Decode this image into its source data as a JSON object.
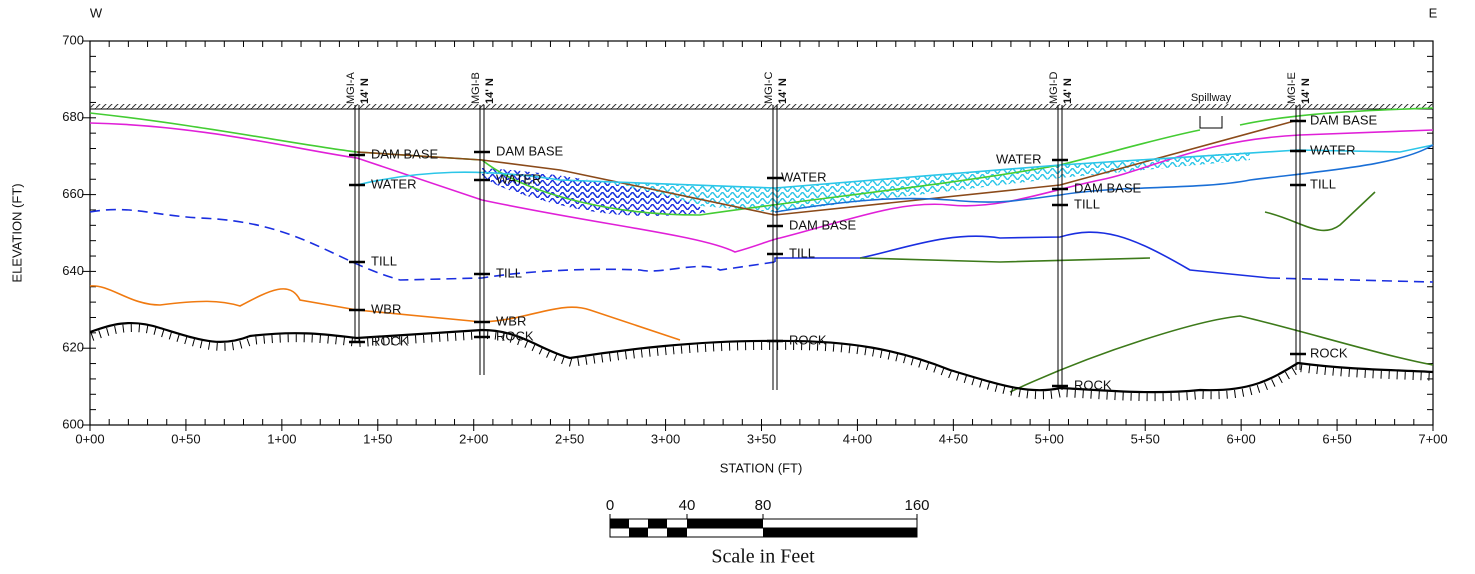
{
  "corners": {
    "west": "W",
    "east": "E"
  },
  "y_axis": {
    "title": "ELEVATION (FT)",
    "ticks": [
      "700",
      "680",
      "660",
      "640",
      "620",
      "600"
    ]
  },
  "x_axis": {
    "title": "STATION (FT)",
    "ticks": [
      "0+00",
      "0+50",
      "1+00",
      "1+50",
      "2+00",
      "2+50",
      "3+00",
      "3+50",
      "4+00",
      "4+50",
      "5+00",
      "5+50",
      "6+00",
      "6+50",
      "7+00"
    ]
  },
  "borings": [
    {
      "name": "MGI-A",
      "offset": "14' N",
      "labels": [
        "DAM BASE",
        "WATER",
        "TILL",
        "WBR",
        "ROCK"
      ]
    },
    {
      "name": "MGI-B",
      "offset": "14' N",
      "labels": [
        "DAM BASE",
        "WATER",
        "TILL",
        "WBR",
        "ROCK"
      ]
    },
    {
      "name": "MGI-C",
      "offset": "14' N",
      "labels": [
        "WATER",
        "DAM BASE",
        "TILL",
        "ROCK"
      ]
    },
    {
      "name": "MGI-D",
      "offset": "14' N",
      "labels": [
        "WATER",
        "DAM BASE",
        "TILL",
        "ROCK"
      ]
    },
    {
      "name": "MGI-E",
      "offset": "14' N",
      "labels": [
        "DAM BASE",
        "WATER",
        "TILL",
        "ROCK"
      ]
    }
  ],
  "spillway": "Spillway",
  "scale_bar": {
    "ticks": [
      "0",
      "40",
      "80",
      "160"
    ],
    "caption": "Scale in Feet"
  }
}
